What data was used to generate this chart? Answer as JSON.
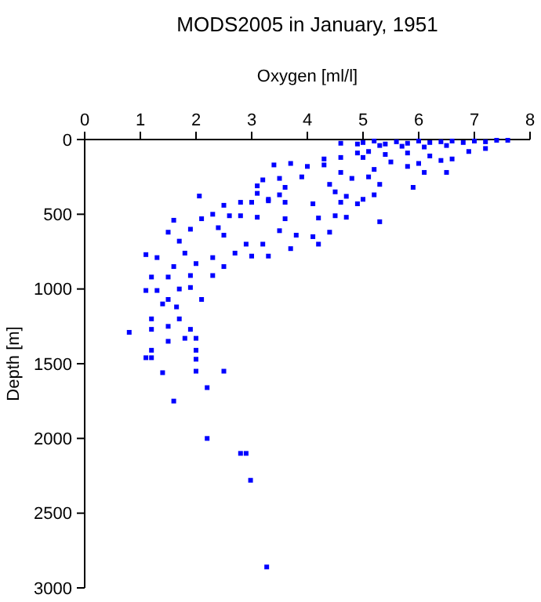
{
  "chart_data": {
    "type": "scatter",
    "title": "MODS2005 in January, 1951",
    "xlabel": "Oxygen [ml/l]",
    "ylabel": "Depth [m]",
    "xlim": [
      0,
      8
    ],
    "xticks": [
      0,
      1,
      2,
      3,
      4,
      5,
      6,
      7,
      8
    ],
    "ylim": [
      3000,
      0
    ],
    "yticks": [
      0,
      500,
      1000,
      1500,
      2000,
      2500,
      3000
    ],
    "marker": "square",
    "grid": false,
    "series": [
      {
        "color": "#0000ff",
        "x": [
          5.0,
          5.2,
          5.4,
          5.6,
          5.8,
          6.0,
          6.2,
          6.4,
          6.6,
          6.8,
          7.0,
          7.2,
          7.4,
          7.6,
          5.3,
          5.7,
          6.1,
          6.5,
          4.9,
          4.6,
          5.1,
          5.4,
          5.8,
          6.2,
          6.6,
          6.9,
          7.2,
          5.0,
          5.5,
          6.0,
          6.4,
          4.3,
          4.6,
          4.9,
          3.4,
          3.7,
          4.0,
          4.3,
          5.2,
          5.8,
          6.1,
          6.5,
          3.2,
          3.5,
          3.9,
          4.6,
          4.8,
          5.1,
          5.3,
          5.9,
          3.1,
          3.6,
          4.4,
          3.1,
          3.5,
          4.5,
          4.7,
          5.2,
          3.3,
          2.06,
          2.8,
          3.0,
          3.3,
          3.6,
          4.1,
          4.6,
          4.9,
          5.0,
          2.5,
          1.6,
          2.1,
          2.6,
          2.8,
          3.1,
          3.6,
          4.2,
          4.5,
          4.7,
          5.3,
          2.3,
          1.5,
          1.9,
          2.4,
          2.5,
          3.5,
          3.8,
          4.1,
          4.4,
          1.7,
          2.9,
          3.2,
          3.7,
          4.2,
          1.1,
          1.3,
          1.8,
          2.3,
          2.7,
          3.0,
          3.3,
          1.6,
          2.0,
          2.5,
          1.2,
          1.5,
          1.9,
          2.3,
          1.1,
          1.3,
          1.7,
          1.9,
          2.1,
          1.5,
          1.4,
          1.65,
          1.2,
          1.5,
          0.8,
          1.2,
          1.7,
          1.9,
          1.8,
          2.0,
          1.5,
          1.2,
          1.1,
          1.2,
          2.0,
          2.0,
          1.4,
          2.0,
          2.5,
          2.2,
          1.6,
          2.2,
          2.8,
          2.9,
          2.98,
          3.27
        ],
        "values": [
          20,
          10,
          30,
          15,
          25,
          10,
          20,
          15,
          10,
          20,
          10,
          15,
          5,
          5,
          40,
          45,
          50,
          40,
          30,
          25,
          80,
          100,
          90,
          110,
          130,
          80,
          60,
          120,
          150,
          160,
          140,
          130,
          120,
          90,
          170,
          160,
          180,
          170,
          200,
          180,
          220,
          220,
          270,
          260,
          250,
          220,
          260,
          250,
          300,
          320,
          310,
          320,
          300,
          360,
          370,
          350,
          380,
          370,
          400,
          378,
          420,
          420,
          410,
          420,
          430,
          420,
          430,
          400,
          440,
          540,
          530,
          510,
          510,
          520,
          530,
          525,
          510,
          520,
          550,
          500,
          620,
          600,
          590,
          640,
          610,
          640,
          650,
          620,
          680,
          700,
          700,
          730,
          700,
          770,
          790,
          760,
          790,
          760,
          780,
          780,
          850,
          830,
          850,
          920,
          920,
          910,
          910,
          1010,
          1010,
          1000,
          990,
          1070,
          1070,
          1100,
          1120,
          1200,
          1250,
          1290,
          1270,
          1200,
          1270,
          1330,
          1330,
          1350,
          1410,
          1460,
          1460,
          1410,
          1470,
          1560,
          1550,
          1550,
          1660,
          1750,
          2000,
          2100,
          2100,
          2280,
          2860
        ]
      }
    ]
  }
}
